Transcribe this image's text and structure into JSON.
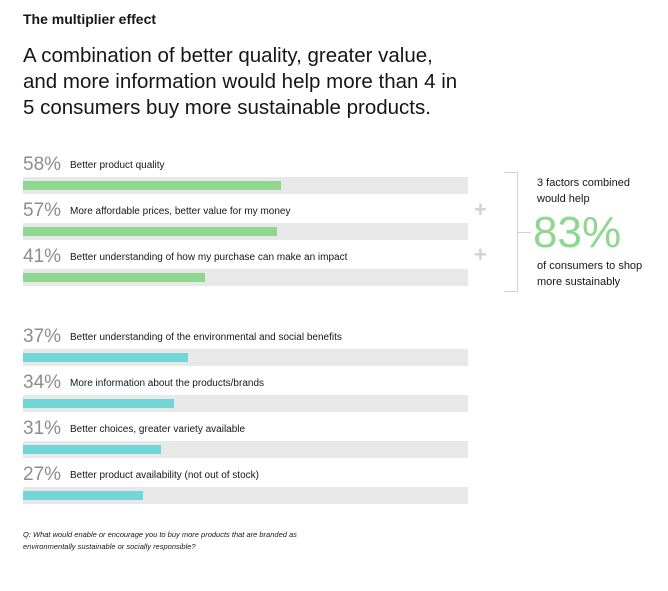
{
  "eyebrow": "The multiplier effect",
  "headline": "A combination of better quality, greater value, and more information would help more than 4 in 5 consumers buy more sustainable products.",
  "callout": {
    "line1": "3 factors combined would help",
    "value": "83%",
    "line2": "of consumers to shop more sustainably",
    "plus_symbol": "+"
  },
  "footnote": "Q: What would enable or encourage you to buy more products that are branded as environmentally sustainable or socially responsible?",
  "colors": {
    "green": "#8fd691",
    "teal": "#72d6d6",
    "track": "#e8e8e8"
  },
  "chart_data": {
    "type": "bar",
    "orientation": "horizontal",
    "xlim": [
      0,
      100
    ],
    "groups": [
      {
        "color": "green",
        "items": [
          {
            "value_label": "58%",
            "value": 58,
            "label": "Better product quality"
          },
          {
            "value_label": "57%",
            "value": 57,
            "label": "More affordable prices, better value for my money"
          },
          {
            "value_label": "41%",
            "value": 41,
            "label": "Better understanding of how my purchase can make an impact"
          }
        ]
      },
      {
        "color": "teal",
        "items": [
          {
            "value_label": "37%",
            "value": 37,
            "label": "Better understanding of the environmental and social benefits"
          },
          {
            "value_label": "34%",
            "value": 34,
            "label": "More information about the products/brands"
          },
          {
            "value_label": "31%",
            "value": 31,
            "label": "Better choices, greater variety available"
          },
          {
            "value_label": "27%",
            "value": 27,
            "label": "Better product availability (not out of stock)"
          }
        ]
      }
    ]
  }
}
